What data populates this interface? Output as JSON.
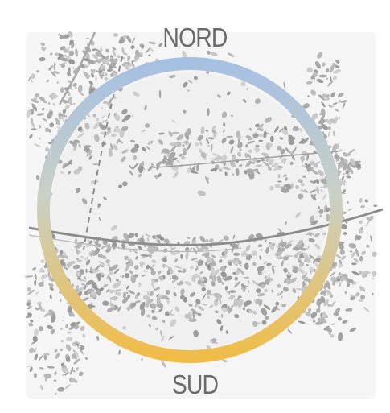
{
  "labels": {
    "north": "NORD",
    "south": "SUD"
  },
  "colors": {
    "ring_top": "#a6c0e2",
    "ring_mid": "#c9d0c6",
    "ring_bottom": "#f0bc48",
    "map_fill": "#b9b9b9",
    "map_background": "#eeeeee",
    "road": "#8c8c8c"
  },
  "icons": {
    "ring": "orientation-ring"
  }
}
